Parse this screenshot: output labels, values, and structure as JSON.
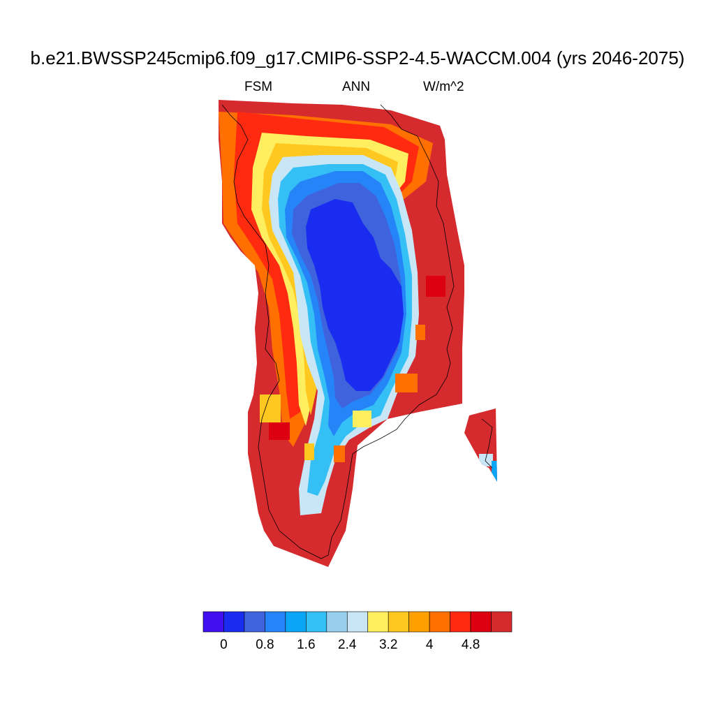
{
  "title": "b.e21.BWSSP245cmip6.f09_g17.CMIP6-SSP2-4.5-WACCM.004 (yrs 2046-2075)",
  "labels": {
    "left": "FSM",
    "center": "ANN",
    "right": "W/m^2"
  },
  "chart_data": {
    "type": "heatmap",
    "variable": "FSM",
    "season": "ANN",
    "units": "W/m^2",
    "region": "Greenland",
    "colorbar": {
      "levels": [
        0,
        0.4,
        0.8,
        1.2,
        1.6,
        2.0,
        2.4,
        2.8,
        3.2,
        3.6,
        4.0,
        4.4,
        4.8,
        5.2
      ],
      "tick_labels": [
        "0",
        "0.8",
        "1.6",
        "2.4",
        "3.2",
        "4",
        "4.8"
      ],
      "tick_values": [
        0,
        0.8,
        1.6,
        2.4,
        3.2,
        4.0,
        4.8
      ],
      "colors": [
        "#4010F0",
        "#1A2CF0",
        "#3F63DD",
        "#2584F8",
        "#0AA5F5",
        "#34C0F5",
        "#98CFEE",
        "#C8E6F5",
        "#FFEE60",
        "#FFC820",
        "#FFA000",
        "#FF7000",
        "#FF2A10",
        "#DD0010",
        "#D52B2E"
      ]
    },
    "field_summary": {
      "interior_ice_sheet": "0 to 0.4",
      "ice_sheet_margin": "0.8 to 2.8",
      "coastal_ablation_zone": "3.2 to 4.8",
      "coast_and_south": "> 5.2"
    }
  }
}
